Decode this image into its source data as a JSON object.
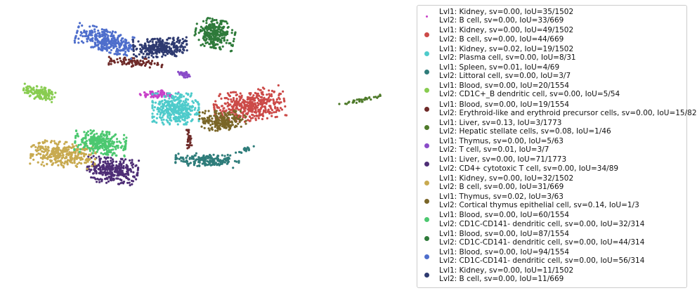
{
  "chart_data": {
    "type": "scatter",
    "title": "",
    "xlabel": "",
    "ylabel": "",
    "axes_visible": false,
    "legend_position": "right",
    "series": [
      {
        "line1": "Lvl1: Kidney, sv=0.00, IoU=35/1502",
        "line2": "Lvl2: B cell, sv=0.00, IoU=33/669",
        "color": "#c840c8",
        "clusters": [
          {
            "cx": 226,
            "cy": 134,
            "rx": 28,
            "ry": 6,
            "n": 70,
            "angle": 0
          }
        ]
      },
      {
        "line1": "Lvl1: Kidney, sv=0.00, IoU=49/1502",
        "line2": "Lvl2: B cell, sv=0.00, IoU=44/669",
        "color": "#cc4a48",
        "clusters": [
          {
            "cx": 355,
            "cy": 150,
            "rx": 50,
            "ry": 22,
            "n": 420,
            "angle": -0.15
          }
        ]
      },
      {
        "line1": "Lvl1: Kidney, sv=0.02, IoU=19/1502",
        "line2": "Lvl2: Plasma cell, sv=0.00, IoU=8/31",
        "color": "#4ecbcb",
        "clusters": [
          {
            "cx": 250,
            "cy": 155,
            "rx": 33,
            "ry": 22,
            "n": 380,
            "angle": 0
          }
        ]
      },
      {
        "line1": "Lvl1: Spleen, sv=0.01, IoU=4/69",
        "line2": "Lvl2: Littoral cell, sv=0.00, IoU=3/7",
        "color": "#2e7c7a",
        "clusters": [
          {
            "cx": 295,
            "cy": 228,
            "rx": 45,
            "ry": 9,
            "n": 190,
            "angle": 0.05
          },
          {
            "cx": 350,
            "cy": 213,
            "rx": 15,
            "ry": 3,
            "n": 18,
            "angle": -0.3
          }
        ]
      },
      {
        "line1": "Lvl1: Blood, sv=0.00, IoU=20/1554",
        "line2": "Lvl2: CD1C+_B dendritic cell, sv=0.00, IoU=5/54",
        "color": "#88cc50",
        "clusters": [
          {
            "cx": 58,
            "cy": 133,
            "rx": 25,
            "ry": 9,
            "n": 130,
            "angle": 0.2
          }
        ]
      },
      {
        "line1": "Lvl1: Blood, sv=0.00, IoU=19/1554",
        "line2": "Lvl2: Erythroid-like and erythroid precursor cells, sv=0.00, IoU=15/82",
        "color": "#6e2a28",
        "clusters": [
          {
            "cx": 193,
            "cy": 89,
            "rx": 38,
            "ry": 6,
            "n": 90,
            "angle": 0.05
          },
          {
            "cx": 269,
            "cy": 198,
            "rx": 4,
            "ry": 13,
            "n": 30,
            "angle": 0
          }
        ]
      },
      {
        "line1": "Lvl1: Liver, sv=0.13, IoU=3/1773",
        "line2": "Lvl2: Hepatic stellate cells, sv=0.08, IoU=1/46",
        "color": "#4e7a2a",
        "clusters": [
          {
            "cx": 512,
            "cy": 143,
            "rx": 30,
            "ry": 2.5,
            "n": 45,
            "angle": -0.22
          }
        ]
      },
      {
        "line1": "Lvl1: Thymus, sv=0.00, IoU=5/63",
        "line2": "Lvl2: T cell, sv=0.01, IoU=3/7",
        "color": "#8a4cc8",
        "clusters": [
          {
            "cx": 263,
            "cy": 106,
            "rx": 10,
            "ry": 4,
            "n": 30,
            "angle": 0.5
          }
        ]
      },
      {
        "line1": "Lvl1: Liver, sv=0.00, IoU=71/1773",
        "line2": "Lvl2: CD4+ cytotoxic T cell, sv=0.00, IoU=34/89",
        "color": "#4e2e76",
        "clusters": [
          {
            "cx": 160,
            "cy": 243,
            "rx": 36,
            "ry": 18,
            "n": 330,
            "angle": 0.1
          }
        ]
      },
      {
        "line1": "Lvl1: Kidney, sv=0.00, IoU=32/1502",
        "line2": "Lvl2: B cell, sv=0.00, IoU=31/669",
        "color": "#c8aa50",
        "clusters": [
          {
            "cx": 90,
            "cy": 220,
            "rx": 46,
            "ry": 18,
            "n": 330,
            "angle": 0.08
          }
        ]
      },
      {
        "line1": "Lvl1: Thymus, sv=0.02, IoU=3/63",
        "line2": "Lvl2: Cortical thymus epithelial cell, sv=0.14, IoU=1/3",
        "color": "#7a6628",
        "clusters": [
          {
            "cx": 317,
            "cy": 172,
            "rx": 33,
            "ry": 14,
            "n": 220,
            "angle": 0
          }
        ]
      },
      {
        "line1": "Lvl1: Blood, sv=0.00, IoU=60/1554",
        "line2": "Lvl2: CD1C-CD141- dendritic cell, sv=0.00, IoU=32/314",
        "color": "#4cc870",
        "clusters": [
          {
            "cx": 143,
            "cy": 203,
            "rx": 36,
            "ry": 16,
            "n": 300,
            "angle": 0.1
          }
        ]
      },
      {
        "line1": "Lvl1: Blood, sv=0.00, IoU=87/1554",
        "line2": "Lvl2: CD1C-CD141- dendritic cell, sv=0.00, IoU=44/314",
        "color": "#2e7a3a",
        "clusters": [
          {
            "cx": 306,
            "cy": 48,
            "rx": 28,
            "ry": 20,
            "n": 260,
            "angle": 0.2
          }
        ]
      },
      {
        "line1": "Lvl1: Blood, sv=0.00, IoU=94/1554",
        "line2": "Lvl2: CD1C-CD141- dendritic cell, sv=0.00, IoU=56/314",
        "color": "#4e6ecc",
        "clusters": [
          {
            "cx": 152,
            "cy": 58,
            "rx": 44,
            "ry": 15,
            "n": 330,
            "angle": 0.28
          }
        ]
      },
      {
        "line1": "Lvl1: Kidney, sv=0.00, IoU=11/1502",
        "line2": "Lvl2: B cell, sv=0.00, IoU=11/669",
        "color": "#2e3a70",
        "clusters": [
          {
            "cx": 228,
            "cy": 68,
            "rx": 38,
            "ry": 13,
            "n": 300,
            "angle": -0.05
          }
        ]
      }
    ]
  }
}
